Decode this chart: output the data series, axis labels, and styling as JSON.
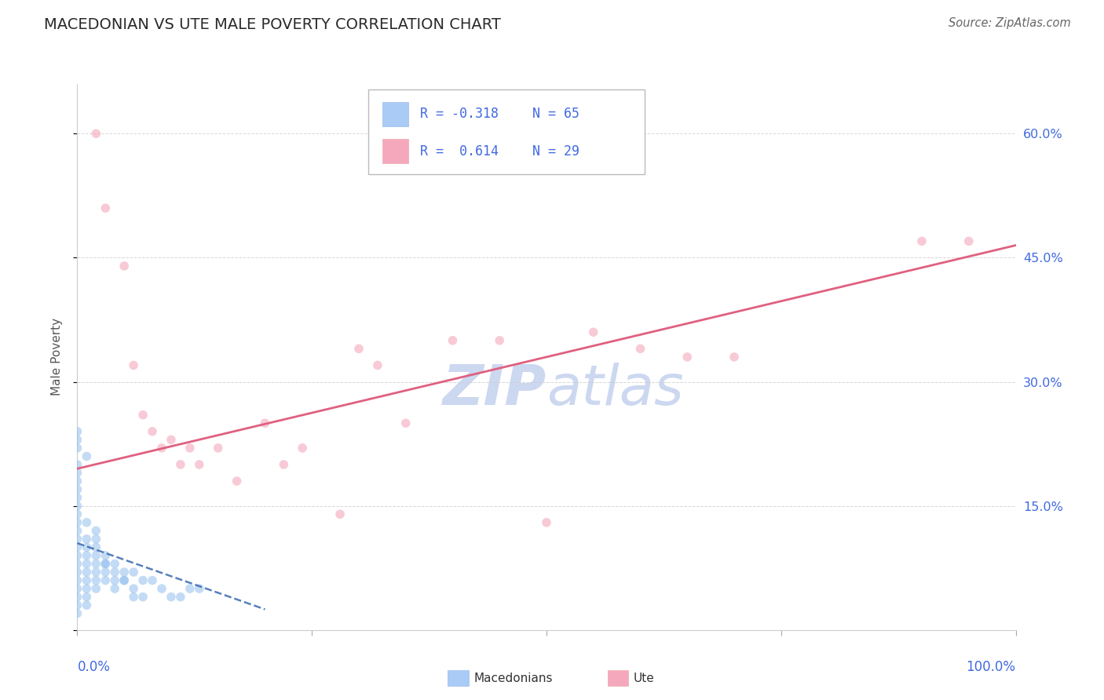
{
  "title": "MACEDONIAN VS UTE MALE POVERTY CORRELATION CHART",
  "source": "Source: ZipAtlas.com",
  "ylabel": "Male Poverty",
  "ylim": [
    0.0,
    0.66
  ],
  "xlim": [
    0.0,
    1.0
  ],
  "yticks": [
    0.0,
    0.15,
    0.3,
    0.45,
    0.6
  ],
  "ytick_labels": [
    "",
    "15.0%",
    "30.0%",
    "45.0%",
    "60.0%"
  ],
  "macedonian_color": "#92bfee",
  "ute_color": "#f4a0b5",
  "macedonian_line_color": "#3a6ab0",
  "ute_line_color": "#e06080",
  "background_color": "#ffffff",
  "grid_color": "#cccccc",
  "title_color": "#2a2a2a",
  "source_color": "#666666",
  "axis_label_color": "#4169e1",
  "watermark_color": "#ccd8f0",
  "dot_size": 70,
  "dot_alpha": 0.55,
  "legend_blue_color": "#aacbf5",
  "legend_pink_color": "#f5a8bc",
  "legend_text_color": "#4169e1",
  "macedonian_x": [
    0.0,
    0.0,
    0.0,
    0.0,
    0.0,
    0.0,
    0.0,
    0.0,
    0.0,
    0.0,
    0.0,
    0.0,
    0.0,
    0.0,
    0.0,
    0.0,
    0.0,
    0.0,
    0.0,
    0.0,
    0.01,
    0.01,
    0.01,
    0.01,
    0.01,
    0.01,
    0.01,
    0.01,
    0.01,
    0.01,
    0.02,
    0.02,
    0.02,
    0.02,
    0.02,
    0.02,
    0.02,
    0.03,
    0.03,
    0.03,
    0.03,
    0.04,
    0.04,
    0.04,
    0.05,
    0.05,
    0.06,
    0.06,
    0.07,
    0.08,
    0.09,
    0.1,
    0.11,
    0.12,
    0.13,
    0.0,
    0.0,
    0.01,
    0.02,
    0.03,
    0.04,
    0.05,
    0.06,
    0.07
  ],
  "macedonian_y": [
    0.2,
    0.19,
    0.18,
    0.17,
    0.16,
    0.14,
    0.13,
    0.12,
    0.11,
    0.1,
    0.09,
    0.08,
    0.07,
    0.06,
    0.05,
    0.04,
    0.03,
    0.02,
    0.15,
    0.22,
    0.1,
    0.09,
    0.08,
    0.07,
    0.06,
    0.05,
    0.04,
    0.03,
    0.13,
    0.11,
    0.12,
    0.1,
    0.09,
    0.08,
    0.07,
    0.06,
    0.05,
    0.09,
    0.08,
    0.07,
    0.06,
    0.08,
    0.07,
    0.05,
    0.07,
    0.06,
    0.07,
    0.05,
    0.06,
    0.06,
    0.05,
    0.04,
    0.04,
    0.05,
    0.05,
    0.23,
    0.24,
    0.21,
    0.11,
    0.08,
    0.06,
    0.06,
    0.04,
    0.04
  ],
  "ute_x": [
    0.02,
    0.03,
    0.05,
    0.06,
    0.07,
    0.08,
    0.09,
    0.1,
    0.11,
    0.12,
    0.13,
    0.15,
    0.17,
    0.2,
    0.22,
    0.24,
    0.28,
    0.3,
    0.32,
    0.35,
    0.4,
    0.45,
    0.5,
    0.55,
    0.6,
    0.65,
    0.7,
    0.9,
    0.95
  ],
  "ute_y": [
    0.6,
    0.51,
    0.44,
    0.32,
    0.26,
    0.24,
    0.22,
    0.23,
    0.2,
    0.22,
    0.2,
    0.22,
    0.18,
    0.25,
    0.2,
    0.22,
    0.14,
    0.34,
    0.32,
    0.25,
    0.35,
    0.35,
    0.13,
    0.36,
    0.34,
    0.33,
    0.33,
    0.47,
    0.47
  ],
  "ute_line_x0": 0.0,
  "ute_line_y0": 0.195,
  "ute_line_x1": 1.0,
  "ute_line_y1": 0.465,
  "mac_line_x0": 0.0,
  "mac_line_y0": 0.105,
  "mac_line_x1": 0.2,
  "mac_line_y1": 0.025
}
